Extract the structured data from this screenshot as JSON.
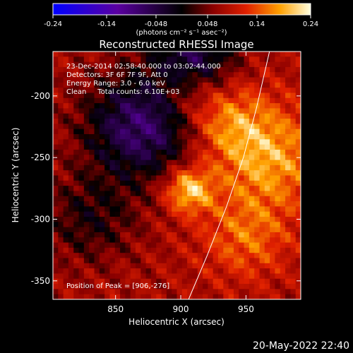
{
  "chart_data": {
    "type": "heatmap",
    "title": "Reconstructed RHESSI Image",
    "xlabel": "Heliocentric X (arcsec)",
    "ylabel": "Heliocentric Y (arcsec)",
    "xlim": [
      802,
      992
    ],
    "ylim": [
      -365,
      -164
    ],
    "x_ticks": [
      850,
      900,
      950
    ],
    "y_ticks": [
      -200,
      -250,
      -300,
      -350
    ],
    "colorbar": {
      "ticks": [
        -0.24,
        -0.14,
        -0.048,
        0.048,
        0.14,
        0.24
      ],
      "tick_labels": [
        "-0.24",
        "-0.14",
        "-0.048",
        "0.048",
        "0.14",
        "0.24"
      ],
      "range": [
        -0.24,
        0.24
      ],
      "units_label": "(photons cm⁻² s⁻¹ asec⁻²)"
    },
    "annotations": {
      "line1": "23-Dec-2014 02:58:40.000 to 03:02:44.000",
      "line2": "Detectors: 3F 6F 7F 9F, Att 0",
      "line3": "Energy Range: 3.0 - 6.0 keV",
      "line4": "Clean     Total counts: 6.10E+03",
      "peak": "Position of Peak = [906,-276]"
    },
    "peak_position": [
      906,
      -276
    ],
    "limb_curve": [
      [
        906,
        -365
      ],
      [
        920,
        -330
      ],
      [
        935,
        -290
      ],
      [
        948,
        -250
      ],
      [
        958,
        -210
      ],
      [
        968,
        -164
      ]
    ]
  },
  "footer": {
    "date": "20-May-2022 22:40"
  }
}
